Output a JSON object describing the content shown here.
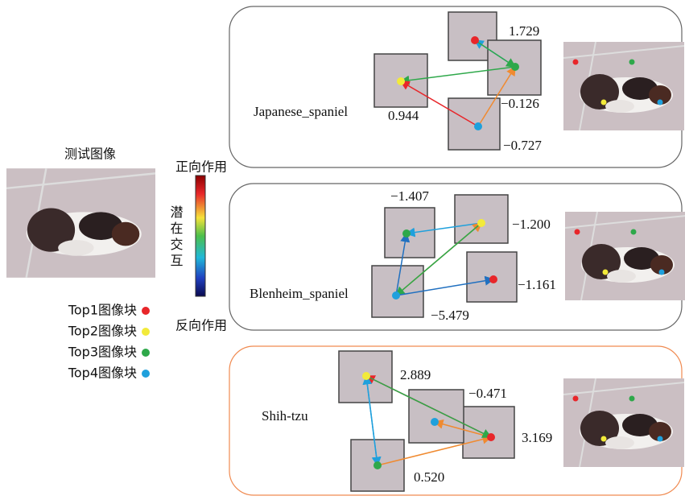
{
  "test_image": {
    "label": "测试图像"
  },
  "colorbar": {
    "top_label": "正向作用",
    "middle_label": "潜在交互",
    "bottom_label": "反向作用"
  },
  "legend": [
    {
      "label": "Top1图像块",
      "color": "#e8262a"
    },
    {
      "label": "Top2图像块",
      "color": "#f2ea3a"
    },
    {
      "label": "Top3图像块",
      "color": "#2ea84a"
    },
    {
      "label": "Top4图像块",
      "color": "#1fa0dc"
    }
  ],
  "panels": [
    {
      "name": "Japanese_spaniel",
      "patches": [
        {
          "value": "1.729"
        },
        {
          "value": "0.944"
        },
        {
          "value": "−0.126"
        },
        {
          "value": "−0.727"
        }
      ]
    },
    {
      "name": "Blenheim_spaniel",
      "patches": [
        {
          "value": "−1.161"
        },
        {
          "value": "−1.200"
        },
        {
          "value": "−1.407"
        },
        {
          "value": "−5.479"
        }
      ]
    },
    {
      "name": "Shih-tzu",
      "patches": [
        {
          "value": "3.169"
        },
        {
          "value": "2.889"
        },
        {
          "value": "0.520"
        },
        {
          "value": "−0.471"
        }
      ]
    }
  ]
}
